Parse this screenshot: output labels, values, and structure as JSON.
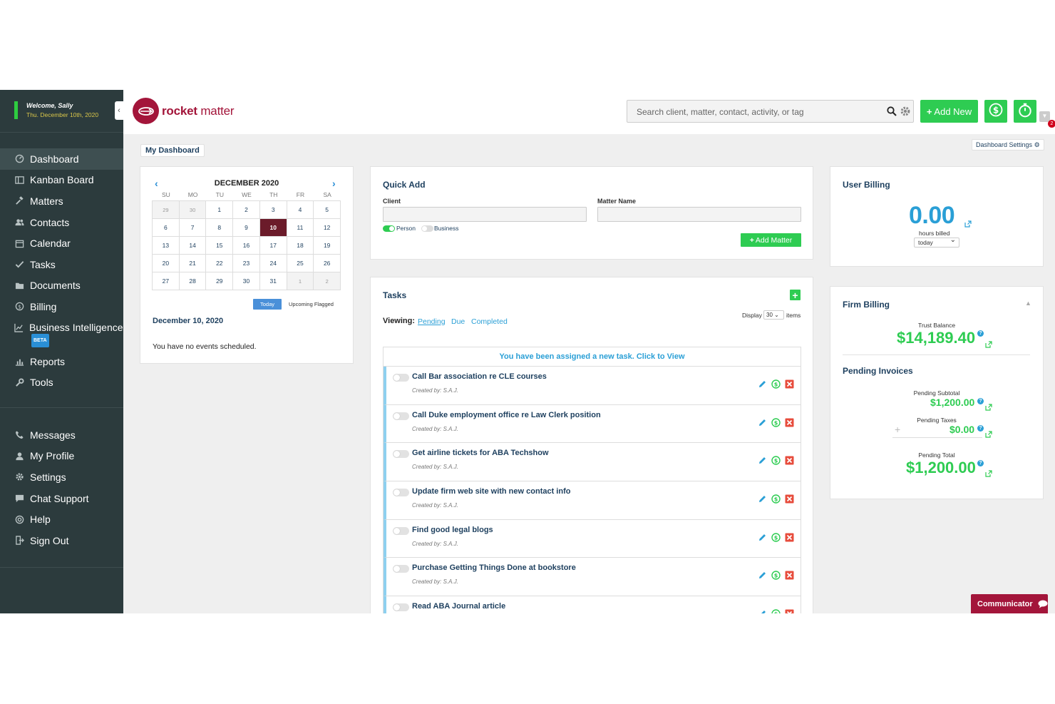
{
  "welcome": {
    "greeting": "Welcome, Sally",
    "date": "Thu. December 10th, 2020"
  },
  "nav": {
    "items": [
      {
        "label": "Dashboard",
        "icon": "dashboard-icon"
      },
      {
        "label": "Kanban Board",
        "icon": "kanban-icon"
      },
      {
        "label": "Matters",
        "icon": "gavel-icon"
      },
      {
        "label": "Contacts",
        "icon": "contacts-icon"
      },
      {
        "label": "Calendar",
        "icon": "calendar-icon"
      },
      {
        "label": "Tasks",
        "icon": "check-icon"
      },
      {
        "label": "Documents",
        "icon": "folder-icon"
      },
      {
        "label": "Billing",
        "icon": "dollar-icon"
      },
      {
        "label": "Business Intelligence",
        "icon": "chart-icon",
        "badge": "BETA"
      },
      {
        "label": "Reports",
        "icon": "bar-chart-icon"
      },
      {
        "label": "Tools",
        "icon": "wrench-icon"
      }
    ],
    "secondary": [
      {
        "label": "Messages",
        "icon": "phone-icon"
      },
      {
        "label": "My Profile",
        "icon": "user-icon"
      },
      {
        "label": "Settings",
        "icon": "gear-icon"
      },
      {
        "label": "Chat Support",
        "icon": "chat-icon"
      },
      {
        "label": "Help",
        "icon": "lifebuoy-icon"
      },
      {
        "label": "Sign Out",
        "icon": "sign-out-icon"
      }
    ]
  },
  "brand": {
    "name_a": "rocket",
    "name_b": " matter",
    "color": "#a3153a"
  },
  "search": {
    "placeholder": "Search client, matter, contact, activity, or tag"
  },
  "header": {
    "add_new": "Add New",
    "notifications": "2"
  },
  "dashboard": {
    "title": "My Dashboard",
    "settings": "Dashboard Settings"
  },
  "calendar": {
    "month": "DECEMBER 2020",
    "dow": [
      "SU",
      "MO",
      "TU",
      "WE",
      "TH",
      "FR",
      "SA"
    ],
    "weeks": [
      [
        "29",
        "30",
        "1",
        "2",
        "3",
        "4",
        "5"
      ],
      [
        "6",
        "7",
        "8",
        "9",
        "10",
        "11",
        "12"
      ],
      [
        "13",
        "14",
        "15",
        "16",
        "17",
        "18",
        "19"
      ],
      [
        "20",
        "21",
        "22",
        "23",
        "24",
        "25",
        "26"
      ],
      [
        "27",
        "28",
        "29",
        "30",
        "31",
        "1",
        "2"
      ]
    ],
    "today_label": "Today",
    "upcoming_label": "Upcoming Flagged",
    "selected_date": "December 10, 2020",
    "no_events": "You have no events scheduled."
  },
  "quick_add": {
    "title": "Quick Add",
    "client_label": "Client",
    "matter_label": "Matter Name",
    "person_label": "Person",
    "business_label": "Business",
    "add_matter": "Add Matter"
  },
  "tasks": {
    "title": "Tasks",
    "viewing_label": "Viewing:",
    "filters": [
      "Pending",
      "Due",
      "Completed"
    ],
    "display_label": "Display",
    "display_value": "30",
    "items_label": "items",
    "assigned_notice": "You have been assigned a new task. Click to View",
    "list": [
      {
        "title": "Call Bar association re CLE courses",
        "created": "Created by: S.A.J."
      },
      {
        "title": "Call Duke employment office re Law Clerk position",
        "created": "Created by: S.A.J."
      },
      {
        "title": "Get airline tickets for ABA Techshow",
        "created": "Created by: S.A.J."
      },
      {
        "title": "Update firm web site with new contact info",
        "created": "Created by: S.A.J."
      },
      {
        "title": "Find good legal blogs",
        "created": "Created by: S.A.J."
      },
      {
        "title": "Purchase Getting Things Done at bookstore",
        "created": "Created by: S.A.J."
      },
      {
        "title": "Read ABA Journal article",
        "created": ""
      }
    ]
  },
  "user_billing": {
    "title": "User Billing",
    "value": "0.00",
    "caption": "hours billed",
    "period": "today"
  },
  "firm_billing": {
    "title": "Firm Billing",
    "trust_label": "Trust Balance",
    "trust_value": "$14,189.40",
    "pending_title": "Pending Invoices",
    "subtotal_label": "Pending Subtotal",
    "subtotal_value": "$1,200.00",
    "taxes_label": "Pending Taxes",
    "taxes_value": "$0.00",
    "total_label": "Pending Total",
    "total_value": "$1,200.00"
  },
  "communicator": {
    "label": "Communicator"
  },
  "colors": {
    "green": "#2ecc52",
    "blue": "#2a9fd6",
    "navy": "#1d3f5e",
    "sidebar": "#2c3b3d"
  }
}
